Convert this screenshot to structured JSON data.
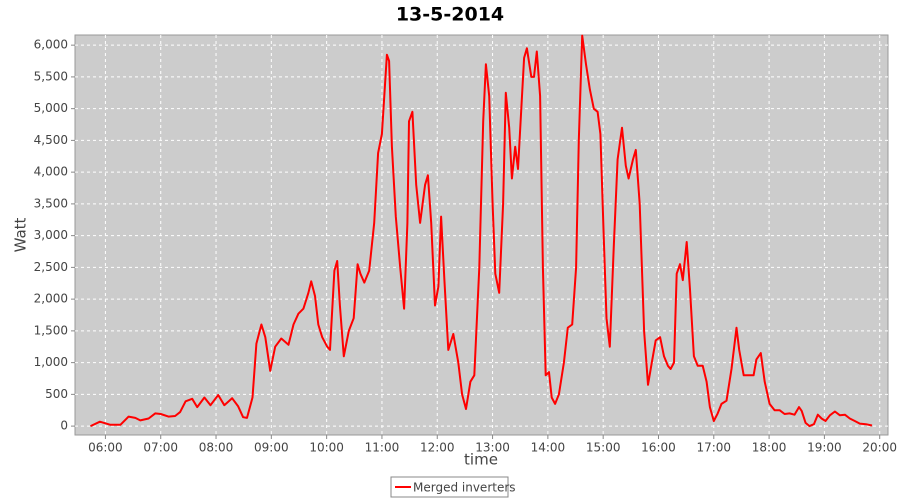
{
  "chart_data": {
    "type": "line",
    "title": "13-5-2014",
    "x_label": "time",
    "y_label": "Watt",
    "xlim": [
      5.45,
      20.15
    ],
    "ylim": [
      -140,
      6160
    ],
    "xticks": [
      {
        "value": 6,
        "label": "06:00"
      },
      {
        "value": 7,
        "label": "07:00"
      },
      {
        "value": 8,
        "label": "08:00"
      },
      {
        "value": 9,
        "label": "09:00"
      },
      {
        "value": 10,
        "label": "10:00"
      },
      {
        "value": 11,
        "label": "11:00"
      },
      {
        "value": 12,
        "label": "12:00"
      },
      {
        "value": 13,
        "label": "13:00"
      },
      {
        "value": 14,
        "label": "14:00"
      },
      {
        "value": 15,
        "label": "15:00"
      },
      {
        "value": 16,
        "label": "16:00"
      },
      {
        "value": 17,
        "label": "17:00"
      },
      {
        "value": 18,
        "label": "18:00"
      },
      {
        "value": 19,
        "label": "19:00"
      },
      {
        "value": 20,
        "label": "20:00"
      }
    ],
    "yticks": [
      0,
      500,
      {
        "value": 1000,
        "label": "1,000"
      },
      {
        "value": 1500,
        "label": "1,500"
      },
      {
        "value": 2000,
        "label": "2,000"
      },
      {
        "value": 2500,
        "label": "2,500"
      },
      {
        "value": 3000,
        "label": "3,000"
      },
      {
        "value": 3500,
        "label": "3,500"
      },
      {
        "value": 4000,
        "label": "4,000"
      },
      {
        "value": 4500,
        "label": "4,500"
      },
      {
        "value": 5000,
        "label": "5,000"
      },
      {
        "value": 5500,
        "label": "5,500"
      },
      {
        "value": 6000,
        "label": "6,000"
      }
    ],
    "grid": true,
    "series": [
      {
        "name": "Merged inverters",
        "color": "#ff0000",
        "x": [
          5.73,
          5.9,
          6.09,
          6.27,
          6.42,
          6.54,
          6.63,
          6.78,
          6.9,
          7.0,
          7.14,
          7.26,
          7.35,
          7.45,
          7.57,
          7.66,
          7.79,
          7.9,
          8.04,
          8.15,
          8.29,
          8.4,
          8.49,
          8.56,
          8.66,
          8.73,
          8.82,
          8.89,
          8.98,
          9.07,
          9.18,
          9.31,
          9.4,
          9.49,
          9.58,
          9.67,
          9.72,
          9.79,
          9.85,
          9.92,
          10.01,
          10.06,
          10.14,
          10.19,
          10.24,
          10.31,
          10.4,
          10.49,
          10.56,
          10.61,
          10.68,
          10.77,
          10.86,
          10.93,
          11.0,
          11.05,
          11.09,
          11.13,
          11.18,
          11.25,
          11.33,
          11.4,
          11.46,
          11.49,
          11.55,
          11.62,
          11.69,
          11.78,
          11.83,
          11.89,
          11.96,
          12.02,
          12.07,
          12.13,
          12.2,
          12.29,
          12.38,
          12.45,
          12.52,
          12.6,
          12.67,
          12.76,
          12.83,
          12.88,
          12.94,
          13.0,
          13.05,
          13.12,
          13.19,
          13.24,
          13.3,
          13.35,
          13.41,
          13.46,
          13.52,
          13.57,
          13.62,
          13.7,
          13.75,
          13.8,
          13.86,
          13.91,
          13.96,
          14.02,
          14.07,
          14.13,
          14.2,
          14.29,
          14.36,
          14.44,
          14.51,
          14.56,
          14.62,
          14.69,
          14.76,
          14.83,
          14.9,
          14.95,
          15.01,
          15.06,
          15.12,
          15.19,
          15.26,
          15.34,
          15.41,
          15.46,
          15.54,
          15.59,
          15.66,
          15.74,
          15.81,
          15.88,
          15.95,
          16.03,
          16.1,
          16.17,
          16.22,
          16.28,
          16.33,
          16.39,
          16.44,
          16.51,
          16.57,
          16.64,
          16.71,
          16.8,
          16.87,
          16.93,
          17.0,
          17.07,
          17.14,
          17.23,
          17.32,
          17.41,
          17.46,
          17.54,
          17.63,
          17.72,
          17.77,
          17.85,
          17.92,
          18.01,
          18.1,
          18.19,
          18.28,
          18.37,
          18.46,
          18.54,
          18.59,
          18.66,
          18.73,
          18.81,
          18.88,
          18.95,
          19.02,
          19.1,
          19.19,
          19.28,
          19.37,
          19.46,
          19.55,
          19.64,
          19.75,
          19.86
        ],
        "values": [
          0,
          70,
          20,
          20,
          150,
          130,
          90,
          120,
          200,
          190,
          150,
          160,
          220,
          390,
          430,
          300,
          450,
          330,
          490,
          330,
          440,
          310,
          140,
          130,
          450,
          1300,
          1600,
          1400,
          870,
          1250,
          1380,
          1280,
          1600,
          1770,
          1850,
          2100,
          2280,
          2050,
          1600,
          1400,
          1250,
          1200,
          2450,
          2600,
          1900,
          1100,
          1500,
          1700,
          2550,
          2400,
          2260,
          2450,
          3200,
          4300,
          4600,
          5300,
          5850,
          5750,
          4400,
          3300,
          2500,
          1850,
          3200,
          4800,
          4950,
          3800,
          3200,
          3800,
          3950,
          3200,
          1900,
          2200,
          3300,
          2300,
          1200,
          1450,
          1000,
          500,
          270,
          700,
          800,
          2500,
          4800,
          5700,
          5200,
          3500,
          2400,
          2100,
          3500,
          5250,
          4700,
          3900,
          4400,
          4050,
          5000,
          5800,
          5950,
          5500,
          5500,
          5900,
          5200,
          2500,
          800,
          850,
          450,
          350,
          500,
          1000,
          1550,
          1600,
          2500,
          4500,
          6150,
          5700,
          5300,
          5000,
          4950,
          4600,
          3000,
          1700,
          1250,
          2800,
          4200,
          4700,
          4100,
          3900,
          4200,
          4350,
          3500,
          1500,
          650,
          1000,
          1350,
          1400,
          1100,
          950,
          900,
          1000,
          2400,
          2550,
          2300,
          2900,
          2150,
          1100,
          950,
          950,
          700,
          300,
          80,
          200,
          350,
          400,
          900,
          1550,
          1200,
          800,
          800,
          800,
          1050,
          1150,
          700,
          350,
          250,
          250,
          190,
          200,
          180,
          300,
          240,
          50,
          0,
          30,
          180,
          120,
          80,
          170,
          230,
          170,
          180,
          120,
          80,
          40,
          30,
          10
        ]
      }
    ]
  }
}
